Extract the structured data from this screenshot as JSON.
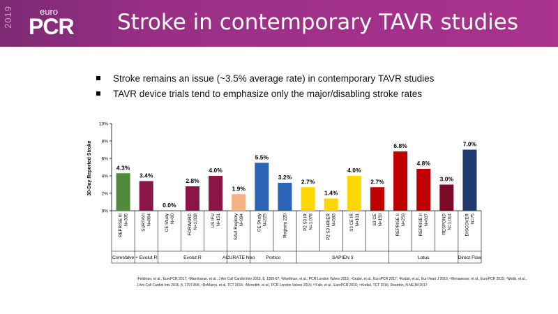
{
  "header": {
    "year": "2019",
    "logo_top": "euro",
    "logo_main": "PCR",
    "title": "Stroke in contemporary TAVR studies",
    "bg_color": "#9a2f86"
  },
  "bullets": [
    "Stroke remains an issue (~3.5% average rate) in contemporary TAVR studies",
    "TAVR device trials tend to emphasize only the major/disabling stroke rates"
  ],
  "chart_data": {
    "type": "bar",
    "ylabel": "30-Day Reported Stroke",
    "ylim": [
      0,
      10
    ],
    "yticks": [
      "0%",
      "2%",
      "4%",
      "6%",
      "8%",
      "10%"
    ],
    "categories": [
      "REPRISE III N=305",
      "SURTAVI N=864",
      "CE Study N=60",
      "FORWARD N=1,038",
      "US IFU N=151",
      "SAVI Registry N=994",
      "CE Study N=225",
      "Registry 220",
      "P2 S3 IR N=1,078",
      "P2 S3 HR/ER N=583",
      "S3 CE IR N=101",
      "S3 CE N=150",
      "REPRISE II N=250",
      "REPRISE II N=607",
      "RESPOND N=1,014",
      "DISCOVER N=75"
    ],
    "values": [
      4.3,
      3.4,
      0.0,
      2.8,
      4.0,
      1.9,
      5.5,
      3.2,
      2.7,
      1.4,
      4.0,
      2.7,
      6.8,
      4.8,
      3.0,
      7.0
    ],
    "value_labels": [
      "4.3%",
      "3.4%",
      "0.0%",
      "2.8%",
      "4.0%",
      "1.9%",
      "5.5%",
      "3.2%",
      "2.7%",
      "1.4%",
      "4.0%",
      "2.7%",
      "6.8%",
      "4.8%",
      "3.0%",
      "7.0%"
    ],
    "colors": [
      "#4e8a3a",
      "#8b1546",
      "#8b1546",
      "#8b1546",
      "#8b1546",
      "#f4b183",
      "#2e64b8",
      "#2e64b8",
      "#ffd700",
      "#ffd700",
      "#ffd700",
      "#c00000",
      "#c00000",
      "#c00000",
      "#7b0a28",
      "#1f3b6e"
    ],
    "groups": [
      {
        "label": "CoreValve",
        "span": [
          0,
          0
        ]
      },
      {
        "label": "CoreValve + Evolut R",
        "span": [
          1,
          1
        ]
      },
      {
        "label": "Evolut R",
        "span": [
          2,
          4
        ]
      },
      {
        "label": "ACURATE Neo",
        "span": [
          5,
          5
        ]
      },
      {
        "label": "Portico",
        "span": [
          6,
          7
        ]
      },
      {
        "label": "SAPIEN 3",
        "span": [
          8,
          11
        ]
      },
      {
        "label": "Lotus",
        "span": [
          12,
          14
        ]
      },
      {
        "label": "Direct Flow",
        "span": [
          15,
          15
        ]
      }
    ],
    "group_display": [
      "CoreValve",
      "+ Evolut R",
      "Evolut R",
      "ACURATE Neo",
      "Portico",
      "SAPIEN 3",
      "Lotus",
      "Direct Flow"
    ]
  },
  "footnote": "¹Feldman, et al., EuroPCR 2017; ²Manoharan, et al., J Am Coll Cardiol Intv 2015, 8, 1359-67; ³Moellman, et al., PCR London Valves 2015; ⁴Grube, et al., EuroPCR 2017; ⁵Kodali, et al., Eur Heart J 2016; ⁶Wenaweser, et al., EuroPCR 2015; ⁷Webb, et al., J Am Coll Cardiol Intv 2015, 8, 1797-806; ⁸DeMarco, et al, TCT 2015; ⁹Meredith, et al., PCR London Valves 2015; ¹⁰Falk, et al., EuroPCR 2016; ¹¹Kodali, TCT 2016; Reardon, N NEJM 2017"
}
